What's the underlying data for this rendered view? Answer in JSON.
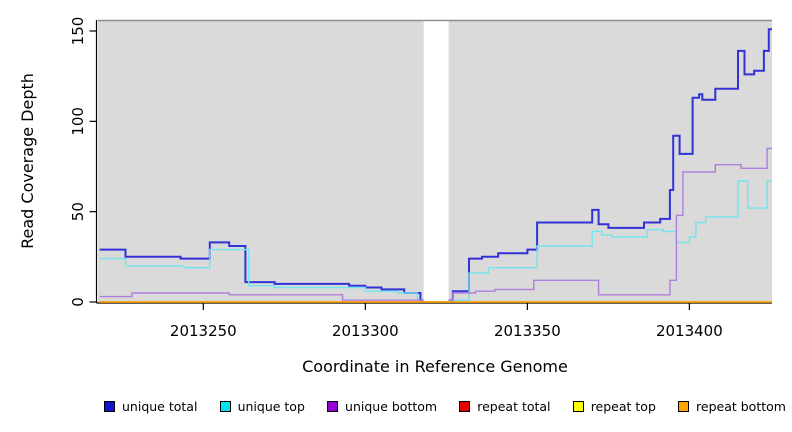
{
  "figure": {
    "kind": "R step-line coverage plot",
    "background": "#ffffff",
    "panel_background": "#DADADA",
    "panel_top_border_color": "#8D8D8D",
    "axis_color": "#000000"
  },
  "chart_data": {
    "type": "line",
    "step": "step-after",
    "title": "",
    "xlabel": "Coordinate in Reference Genome",
    "ylabel": "Read Coverage Depth",
    "xlim": [
      2013217.5,
      2013425.5
    ],
    "ylim": [
      0,
      150
    ],
    "xticks": [
      "2013250",
      "2013300",
      "2013350",
      "2013400"
    ],
    "xtick_values": [
      2013250,
      2013300,
      2013350,
      2013400
    ],
    "yticks": [
      "0",
      "50",
      "100",
      "150"
    ],
    "ytick_values": [
      0,
      50,
      100,
      150
    ],
    "grid": false,
    "legend_position": "bottom",
    "data_gap": {
      "x_start": 2013318.0,
      "x_end": 2013325.7,
      "fill": "#ffffff"
    },
    "series": [
      {
        "id": "unique-total",
        "label": "unique total",
        "legend_color": "#1414CE",
        "line_color": "#3232D6",
        "line_width": 2,
        "segments": [
          {
            "end": 2013318.0,
            "points": [
              [
                2013218,
                29
              ],
              [
                2013226,
                25
              ],
              [
                2013243,
                24
              ],
              [
                2013252,
                33
              ],
              [
                2013258,
                31
              ],
              [
                2013263,
                11
              ],
              [
                2013272,
                10
              ],
              [
                2013295,
                9
              ],
              [
                2013300,
                8
              ],
              [
                2013305,
                7
              ],
              [
                2013312,
                5
              ],
              [
                2013317,
                1
              ]
            ]
          },
          {
            "end": 2013425.5,
            "points": [
              [
                2013325.7,
                1
              ],
              [
                2013327,
                6
              ],
              [
                2013332,
                24
              ],
              [
                2013336,
                25
              ],
              [
                2013341,
                27
              ],
              [
                2013350,
                29
              ],
              [
                2013353,
                44
              ],
              [
                2013370,
                51
              ],
              [
                2013372,
                43
              ],
              [
                2013375,
                41
              ],
              [
                2013386,
                44
              ],
              [
                2013391,
                46
              ],
              [
                2013394,
                62
              ],
              [
                2013395,
                92
              ],
              [
                2013397,
                82
              ],
              [
                2013401,
                113
              ],
              [
                2013403,
                115
              ],
              [
                2013404,
                112
              ],
              [
                2013408,
                118
              ],
              [
                2013415,
                139
              ],
              [
                2013417,
                126
              ],
              [
                2013420,
                128
              ],
              [
                2013423,
                139
              ],
              [
                2013424.5,
                151
              ]
            ]
          }
        ]
      },
      {
        "id": "unique-top",
        "label": "unique top",
        "legend_color": "#00E5EE",
        "line_color": "#72E5EE",
        "line_width": 1.4,
        "segments": [
          {
            "end": 2013318.0,
            "points": [
              [
                2013218,
                24
              ],
              [
                2013226,
                20
              ],
              [
                2013244,
                19
              ],
              [
                2013252,
                29
              ],
              [
                2013264,
                9
              ],
              [
                2013272,
                8
              ],
              [
                2013300,
                6
              ],
              [
                2013310,
                5
              ],
              [
                2013316,
                1
              ]
            ]
          },
          {
            "end": 2013425.5,
            "points": [
              [
                2013325.7,
                1
              ],
              [
                2013332,
                16
              ],
              [
                2013338,
                19
              ],
              [
                2013353,
                31
              ],
              [
                2013370,
                39
              ],
              [
                2013373,
                37
              ],
              [
                2013376,
                36
              ],
              [
                2013387,
                40
              ],
              [
                2013392,
                39
              ],
              [
                2013396,
                33
              ],
              [
                2013400,
                36
              ],
              [
                2013402,
                44
              ],
              [
                2013405,
                47
              ],
              [
                2013415,
                67
              ],
              [
                2013418,
                52
              ],
              [
                2013424,
                67
              ]
            ]
          }
        ]
      },
      {
        "id": "unique-bottom",
        "label": "unique bottom",
        "legend_color": "#9400D3",
        "line_color": "#B07EDD",
        "line_width": 1.4,
        "segments": [
          {
            "end": 2013318.0,
            "points": [
              [
                2013218,
                3
              ],
              [
                2013228,
                5
              ],
              [
                2013258,
                4
              ],
              [
                2013293,
                1
              ]
            ]
          },
          {
            "end": 2013425.5,
            "points": [
              [
                2013325.7,
                1
              ],
              [
                2013327,
                5
              ],
              [
                2013334,
                6
              ],
              [
                2013340,
                7
              ],
              [
                2013352,
                12
              ],
              [
                2013372,
                4
              ],
              [
                2013394,
                12
              ],
              [
                2013396,
                48
              ],
              [
                2013398,
                72
              ],
              [
                2013408,
                76
              ],
              [
                2013416,
                74
              ],
              [
                2013424,
                85
              ]
            ]
          }
        ]
      },
      {
        "id": "repeat-total",
        "label": "repeat total",
        "legend_color": "#E60000",
        "line_color": "#E60000",
        "line_width": 1.2,
        "segments": [
          {
            "end": 2013425.5,
            "points": [
              [
                2013218,
                0
              ]
            ]
          }
        ]
      },
      {
        "id": "repeat-top",
        "label": "repeat top",
        "legend_color": "#FFFF00",
        "line_color": "#FFFF00",
        "line_width": 1.2,
        "segments": [
          {
            "end": 2013425.5,
            "points": [
              [
                2013218,
                0
              ]
            ]
          }
        ]
      },
      {
        "id": "repeat-bottom",
        "label": "repeat bottom",
        "legend_color": "#FFA500",
        "line_color": "#FFA500",
        "line_width": 1.6,
        "segments": [
          {
            "end": 2013425.5,
            "points": [
              [
                2013218,
                0
              ]
            ]
          }
        ]
      }
    ]
  }
}
